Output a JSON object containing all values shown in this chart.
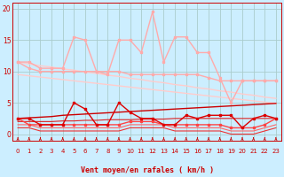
{
  "xlabel": "Vent moyen/en rafales ( km/h )",
  "background_color": "#cceeff",
  "grid_color": "#aacccc",
  "x": [
    0,
    1,
    2,
    3,
    4,
    5,
    6,
    7,
    8,
    9,
    10,
    11,
    12,
    13,
    14,
    15,
    16,
    17,
    18,
    19,
    20,
    21,
    22,
    23
  ],
  "ylim": [
    -1.0,
    21.0
  ],
  "yticks": [
    0,
    5,
    10,
    15,
    20
  ],
  "series": [
    {
      "values": [
        11.5,
        11.5,
        10.5,
        10.5,
        10.5,
        15.5,
        15.0,
        10.0,
        9.5,
        15.0,
        15.0,
        13.0,
        19.5,
        11.5,
        15.5,
        15.5,
        13.0,
        13.0,
        9.0,
        5.0,
        8.5,
        8.5,
        8.5,
        8.5
      ],
      "color": "#ffaaaa",
      "lw": 1.0,
      "marker": "s",
      "ms": 2.0,
      "zorder": 3
    },
    {
      "values": [
        11.5,
        11.2,
        10.9,
        10.7,
        10.4,
        10.2,
        9.9,
        9.7,
        9.4,
        9.2,
        8.9,
        8.7,
        8.4,
        8.2,
        7.9,
        7.7,
        7.4,
        7.2,
        6.9,
        6.7,
        6.4,
        6.2,
        5.9,
        5.7
      ],
      "color": "#ffcccc",
      "lw": 1.0,
      "marker": null,
      "ms": 0,
      "zorder": 2
    },
    {
      "values": [
        9.5,
        9.3,
        9.1,
        8.9,
        8.7,
        8.5,
        8.3,
        8.1,
        7.9,
        7.7,
        7.5,
        7.3,
        7.1,
        6.9,
        6.7,
        6.5,
        6.3,
        6.1,
        5.9,
        5.7,
        5.5,
        5.3,
        5.1,
        4.9
      ],
      "color": "#ffcccc",
      "lw": 1.0,
      "marker": null,
      "ms": 0,
      "zorder": 2
    },
    {
      "values": [
        11.5,
        10.5,
        10.0,
        10.0,
        10.0,
        10.0,
        10.0,
        10.0,
        10.0,
        10.0,
        9.5,
        9.5,
        9.5,
        9.5,
        9.5,
        9.5,
        9.5,
        9.0,
        8.5,
        8.5,
        8.5,
        8.5,
        8.5,
        8.5
      ],
      "color": "#ffaaaa",
      "lw": 1.0,
      "marker": "s",
      "ms": 2.0,
      "zorder": 3
    },
    {
      "values": [
        2.5,
        2.6,
        2.7,
        2.8,
        3.0,
        3.1,
        3.2,
        3.3,
        3.4,
        3.5,
        3.6,
        3.7,
        3.8,
        3.9,
        4.0,
        4.1,
        4.2,
        4.3,
        4.4,
        4.5,
        4.6,
        4.7,
        4.8,
        4.9
      ],
      "color": "#cc0000",
      "lw": 1.0,
      "marker": null,
      "ms": 0,
      "zorder": 2
    },
    {
      "values": [
        2.0,
        2.0,
        2.0,
        2.0,
        2.1,
        2.1,
        2.2,
        2.2,
        2.3,
        2.3,
        2.3,
        2.4,
        2.4,
        2.4,
        2.5,
        2.5,
        2.5,
        2.5,
        2.5,
        2.5,
        2.5,
        2.5,
        2.5,
        2.5
      ],
      "color": "#dd2222",
      "lw": 0.8,
      "marker": null,
      "ms": 0,
      "zorder": 2
    },
    {
      "values": [
        2.5,
        2.5,
        1.5,
        1.5,
        1.5,
        5.0,
        4.0,
        1.5,
        1.5,
        5.0,
        3.5,
        2.5,
        2.5,
        1.5,
        1.5,
        3.0,
        2.5,
        3.0,
        3.0,
        3.0,
        1.0,
        2.5,
        3.0,
        2.5
      ],
      "color": "#dd0000",
      "lw": 1.0,
      "marker": "s",
      "ms": 2.0,
      "zorder": 4
    },
    {
      "values": [
        2.5,
        1.5,
        1.5,
        1.5,
        1.5,
        1.5,
        1.5,
        1.5,
        1.5,
        1.5,
        2.0,
        2.0,
        2.0,
        1.5,
        1.5,
        1.5,
        1.5,
        1.5,
        1.5,
        1.0,
        1.0,
        1.0,
        1.5,
        2.5
      ],
      "color": "#ff4444",
      "lw": 1.0,
      "marker": "s",
      "ms": 2.0,
      "zorder": 3
    },
    {
      "values": [
        1.5,
        1.5,
        1.0,
        1.0,
        1.0,
        1.0,
        1.0,
        1.0,
        1.0,
        1.0,
        1.5,
        1.5,
        1.5,
        1.5,
        1.0,
        1.0,
        1.0,
        1.0,
        1.0,
        0.5,
        0.5,
        0.5,
        1.0,
        1.5
      ],
      "color": "#ff6666",
      "lw": 0.8,
      "marker": null,
      "ms": 0,
      "zorder": 2
    },
    {
      "values": [
        1.0,
        1.0,
        0.5,
        0.5,
        0.5,
        0.5,
        0.5,
        0.5,
        0.5,
        0.5,
        1.0,
        1.0,
        1.0,
        1.0,
        0.5,
        0.5,
        0.5,
        0.5,
        0.5,
        0.0,
        0.0,
        0.0,
        0.5,
        1.0
      ],
      "color": "#ee3333",
      "lw": 0.8,
      "marker": null,
      "ms": 0,
      "zorder": 2
    }
  ],
  "arrow_color": "#cc0000",
  "text_color": "#cc0000",
  "tick_label_color": "#cc0000",
  "axis_color": "#cc0000"
}
